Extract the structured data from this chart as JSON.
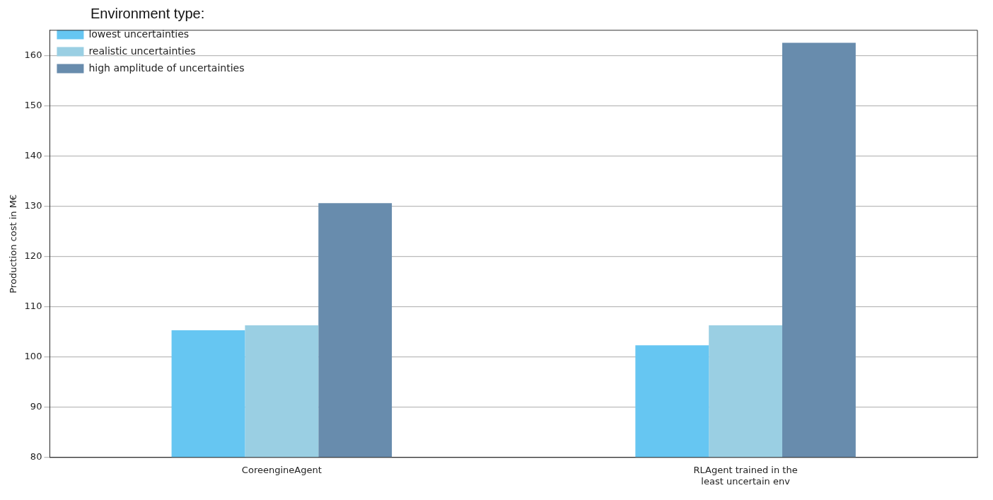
{
  "chart_data": {
    "type": "bar",
    "legend_title": "Environment type:",
    "ylabel": "Production cost in M€",
    "categories": [
      "CoreengineAgent",
      "RLAgent trained in the\nleast uncertain env"
    ],
    "series": [
      {
        "name": "lowest uncertainties",
        "color": "#66c6f2",
        "values": [
          105.3,
          102.3
        ]
      },
      {
        "name": "realistic uncertainties",
        "color": "#9acfe3",
        "values": [
          106.3,
          106.3
        ]
      },
      {
        "name": "high amplitude of uncertainties",
        "color": "#688cad",
        "values": [
          130.6,
          162.5
        ]
      }
    ],
    "ylim": [
      80,
      165
    ],
    "yticks": [
      80,
      90,
      100,
      110,
      120,
      130,
      140,
      150,
      160
    ],
    "grid": "y",
    "legend": "top left"
  }
}
